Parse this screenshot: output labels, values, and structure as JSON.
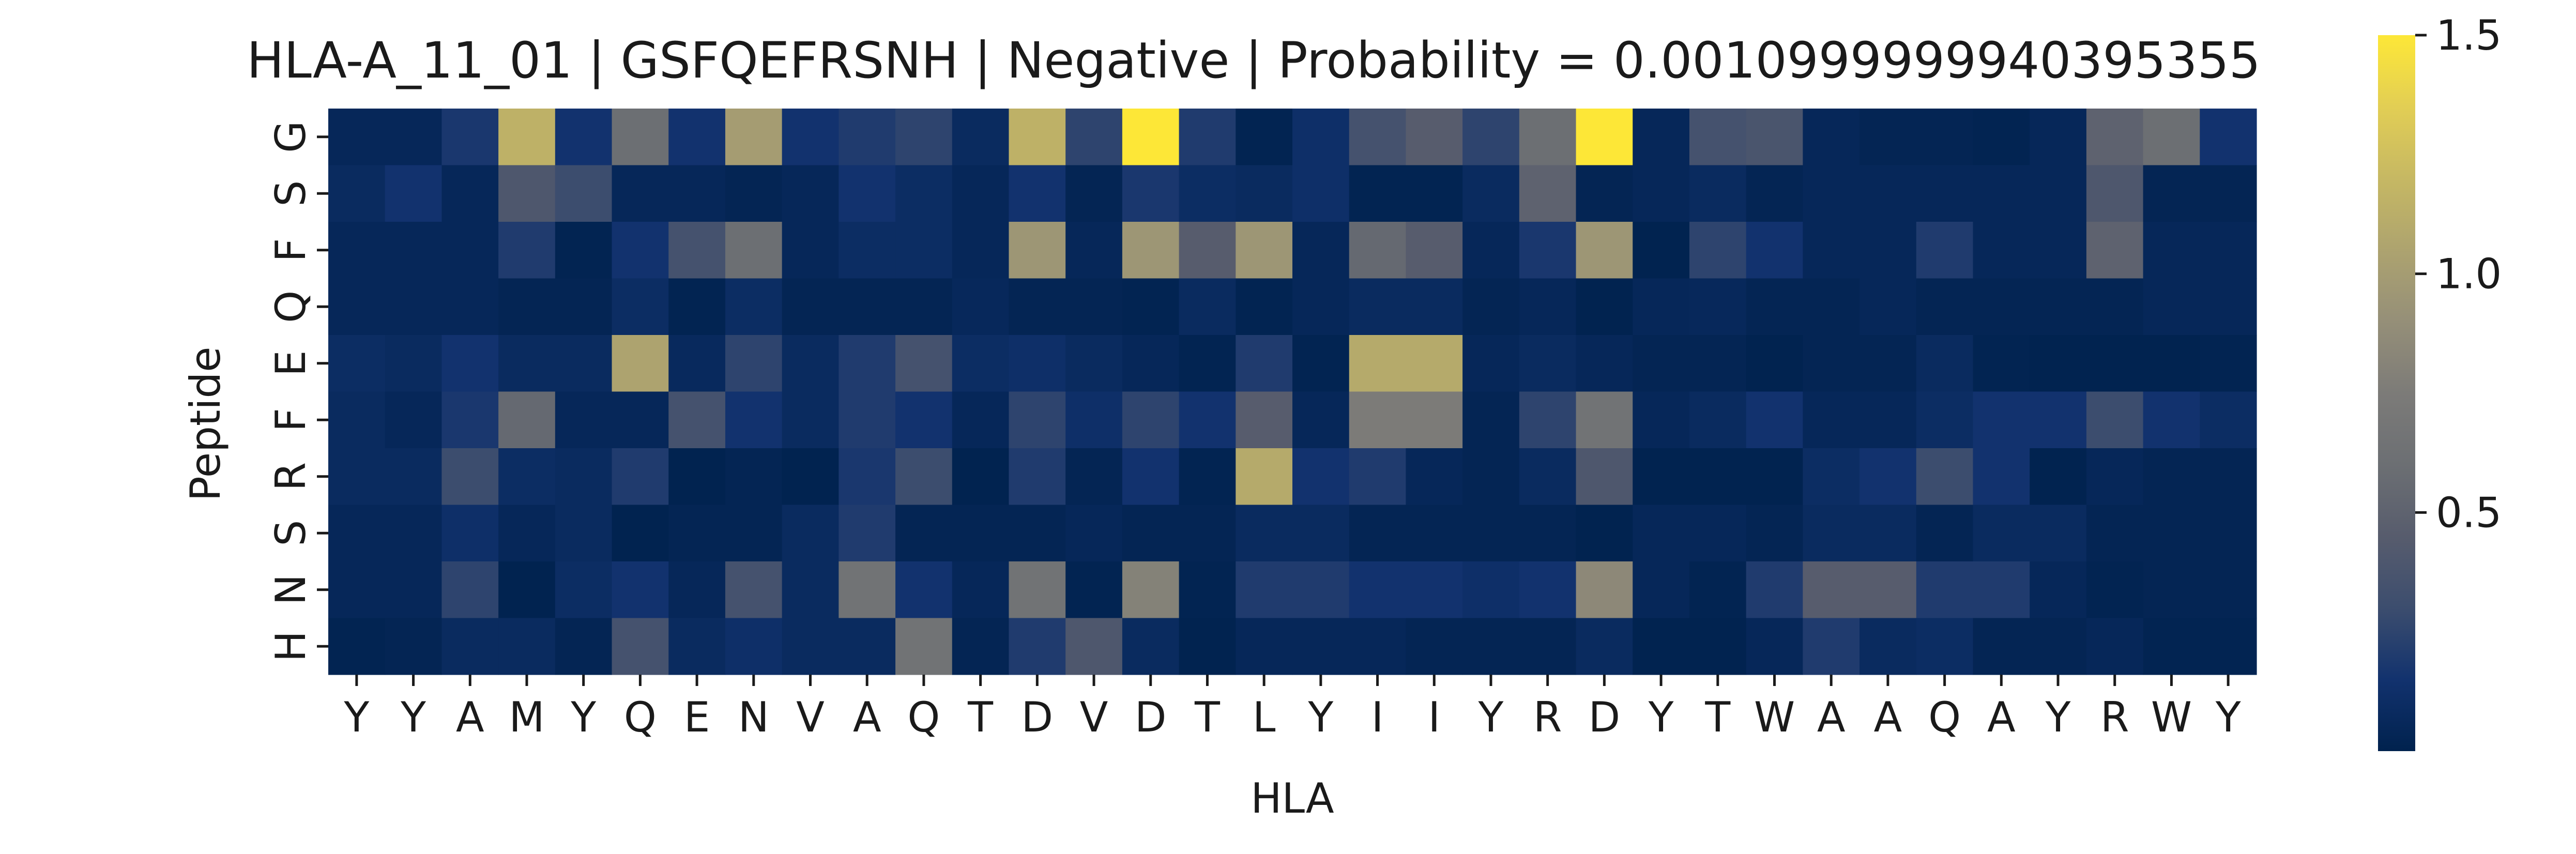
{
  "chart_data": {
    "type": "heatmap",
    "title": "HLA-A_11_01 | GSFQEFRSNH | Negative | Probability = 0.0010999999940395355",
    "xlabel": "HLA",
    "ylabel": "Peptide",
    "x_categories": [
      "Y",
      "Y",
      "A",
      "M",
      "Y",
      "Q",
      "E",
      "N",
      "V",
      "A",
      "Q",
      "T",
      "D",
      "V",
      "D",
      "T",
      "L",
      "Y",
      "I",
      "I",
      "Y",
      "R",
      "D",
      "Y",
      "T",
      "W",
      "A",
      "A",
      "Q",
      "A",
      "Y",
      "R",
      "W",
      "Y"
    ],
    "y_categories": [
      "G",
      "S",
      "F",
      "Q",
      "E",
      "F",
      "R",
      "S",
      "N",
      "H"
    ],
    "colormap": "cividis",
    "colorbar": {
      "vmin": 0.0,
      "vmax": 1.5,
      "ticks": [
        "0.5",
        "1.0",
        "1.5"
      ],
      "tick_values": [
        0.5,
        1.0,
        1.5
      ]
    },
    "values": [
      [
        0.05,
        0.05,
        0.18,
        1.15,
        0.15,
        0.6,
        0.15,
        1.0,
        0.15,
        0.2,
        0.25,
        0.08,
        1.15,
        0.25,
        1.5,
        0.2,
        0.02,
        0.12,
        0.35,
        0.45,
        0.25,
        0.6,
        1.5,
        0.05,
        0.35,
        0.38,
        0.05,
        0.03,
        0.03,
        0.02,
        0.05,
        0.5,
        0.6,
        0.15
      ],
      [
        0.08,
        0.15,
        0.05,
        0.4,
        0.3,
        0.05,
        0.05,
        0.03,
        0.05,
        0.15,
        0.1,
        0.05,
        0.15,
        0.03,
        0.18,
        0.1,
        0.08,
        0.12,
        0.02,
        0.02,
        0.08,
        0.5,
        0.03,
        0.05,
        0.08,
        0.03,
        0.05,
        0.05,
        0.05,
        0.05,
        0.05,
        0.4,
        0.03,
        0.03
      ],
      [
        0.05,
        0.05,
        0.05,
        0.2,
        0.02,
        0.15,
        0.35,
        0.6,
        0.05,
        0.1,
        0.1,
        0.05,
        0.95,
        0.05,
        0.95,
        0.45,
        0.95,
        0.05,
        0.55,
        0.45,
        0.05,
        0.18,
        0.95,
        0.01,
        0.25,
        0.15,
        0.05,
        0.05,
        0.2,
        0.05,
        0.05,
        0.5,
        0.05,
        0.05
      ],
      [
        0.05,
        0.05,
        0.05,
        0.03,
        0.03,
        0.1,
        0.02,
        0.1,
        0.03,
        0.03,
        0.03,
        0.06,
        0.03,
        0.03,
        0.02,
        0.08,
        0.02,
        0.05,
        0.08,
        0.08,
        0.03,
        0.05,
        0.01,
        0.05,
        0.06,
        0.03,
        0.03,
        0.05,
        0.03,
        0.03,
        0.03,
        0.03,
        0.05,
        0.05
      ],
      [
        0.1,
        0.08,
        0.15,
        0.08,
        0.08,
        1.05,
        0.07,
        0.25,
        0.08,
        0.2,
        0.35,
        0.1,
        0.12,
        0.08,
        0.05,
        0.02,
        0.2,
        0.02,
        1.1,
        1.1,
        0.05,
        0.08,
        0.05,
        0.03,
        0.03,
        0.01,
        0.03,
        0.03,
        0.08,
        0.02,
        0.01,
        0.01,
        0.01,
        0.02
      ],
      [
        0.08,
        0.05,
        0.18,
        0.55,
        0.05,
        0.05,
        0.35,
        0.15,
        0.08,
        0.2,
        0.15,
        0.05,
        0.25,
        0.12,
        0.25,
        0.15,
        0.45,
        0.05,
        0.75,
        0.75,
        0.03,
        0.25,
        0.65,
        0.05,
        0.08,
        0.15,
        0.05,
        0.05,
        0.1,
        0.15,
        0.15,
        0.3,
        0.15,
        0.1
      ],
      [
        0.08,
        0.08,
        0.3,
        0.1,
        0.08,
        0.2,
        0.01,
        0.03,
        0.01,
        0.18,
        0.3,
        0.01,
        0.2,
        0.03,
        0.15,
        0.02,
        1.1,
        0.15,
        0.2,
        0.05,
        0.03,
        0.08,
        0.4,
        0.01,
        0.01,
        0.01,
        0.1,
        0.15,
        0.3,
        0.15,
        0.01,
        0.05,
        0.03,
        0.03
      ],
      [
        0.05,
        0.05,
        0.12,
        0.05,
        0.08,
        0.01,
        0.03,
        0.03,
        0.08,
        0.2,
        0.03,
        0.03,
        0.03,
        0.05,
        0.03,
        0.03,
        0.08,
        0.08,
        0.03,
        0.03,
        0.03,
        0.03,
        0.01,
        0.05,
        0.05,
        0.03,
        0.08,
        0.08,
        0.03,
        0.08,
        0.08,
        0.03,
        0.03,
        0.03
      ],
      [
        0.05,
        0.05,
        0.25,
        0.01,
        0.1,
        0.15,
        0.05,
        0.35,
        0.08,
        0.65,
        0.15,
        0.05,
        0.65,
        0.02,
        0.8,
        0.02,
        0.2,
        0.2,
        0.15,
        0.15,
        0.12,
        0.15,
        0.85,
        0.05,
        0.02,
        0.2,
        0.45,
        0.45,
        0.2,
        0.2,
        0.05,
        0.02,
        0.03,
        0.03
      ],
      [
        0.02,
        0.03,
        0.08,
        0.08,
        0.03,
        0.35,
        0.08,
        0.12,
        0.08,
        0.08,
        0.65,
        0.03,
        0.2,
        0.4,
        0.08,
        0.01,
        0.05,
        0.05,
        0.05,
        0.03,
        0.03,
        0.03,
        0.08,
        0.01,
        0.01,
        0.05,
        0.2,
        0.08,
        0.1,
        0.03,
        0.03,
        0.05,
        0.02,
        0.02
      ]
    ]
  }
}
